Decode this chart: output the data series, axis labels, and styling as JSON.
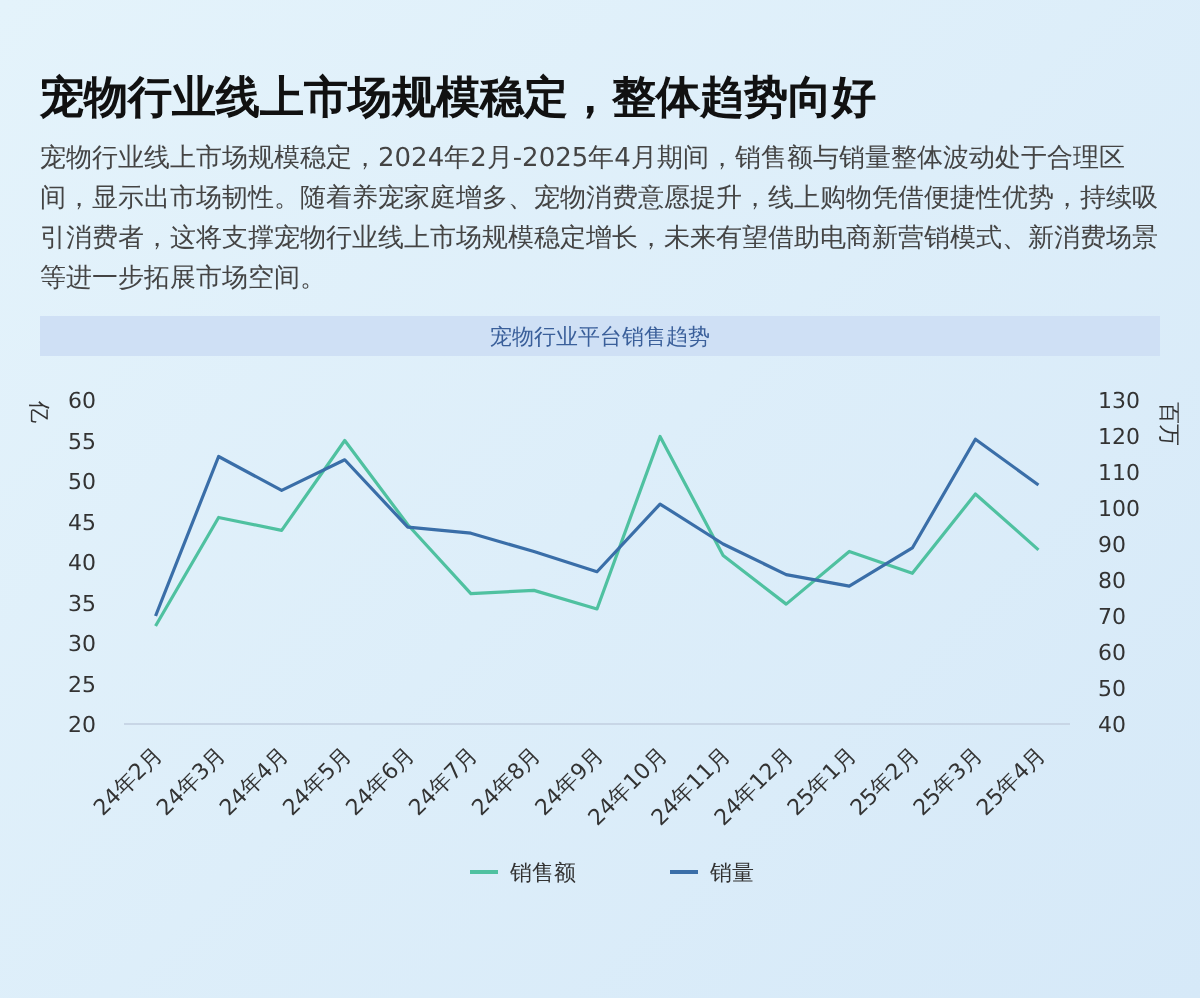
{
  "chart_data": {
    "type": "line",
    "title": "宠物行业线上市场规模稳定，整体趋势向好",
    "subtitle": "宠物行业线上市场规模稳定，2024年2月-2025年4月期间，销售额与销量整体波动处于合理区间，显示出市场韧性。随着养宠家庭增多、宠物消费意愿提升，线上购物凭借便捷性优势，持续吸引消费者，这将支撑宠物行业线上市场规模稳定增长，未来有望借助电商新营销模式、新消费场景等进一步拓展市场空间。",
    "annotations": [
      "宠物行业平台销售趋势"
    ],
    "ylabel": "亿",
    "y2label": "百万",
    "categories": [
      "24年2月",
      "24年3月",
      "24年4月",
      "24年5月",
      "24年6月",
      "24年7月",
      "24年8月",
      "24年9月",
      "24年10月",
      "24年11月",
      "24年12月",
      "25年1月",
      "25年2月",
      "25年3月",
      "25年4月"
    ],
    "series": [
      {
        "name": "销售额",
        "color": "#4fc1a0",
        "values": [
          32.1,
          45.5,
          43.9,
          55.0,
          44.6,
          36.1,
          36.5,
          34.2,
          55.5,
          40.8,
          34.8,
          41.3,
          38.6,
          48.4,
          41.5
        ]
      },
      {
        "name": "销量",
        "color": "#3a6ea8",
        "axis": "y2",
        "values": [
          70.0,
          114.3,
          104.9,
          113.4,
          94.7,
          93.0,
          87.9,
          82.3,
          101.1,
          90.0,
          81.5,
          78.3,
          88.9,
          119.1,
          106.4
        ]
      }
    ],
    "ylim": [
      20,
      60
    ],
    "yticks": [
      20,
      25,
      30,
      35,
      40,
      45,
      50,
      55,
      60
    ],
    "y2lim": [
      40,
      130
    ],
    "y2ticks": [
      40,
      50,
      60,
      70,
      80,
      90,
      100,
      110,
      120,
      130
    ],
    "legend": "bottom",
    "grid": false,
    "marker": "none",
    "line_style": "solid"
  }
}
